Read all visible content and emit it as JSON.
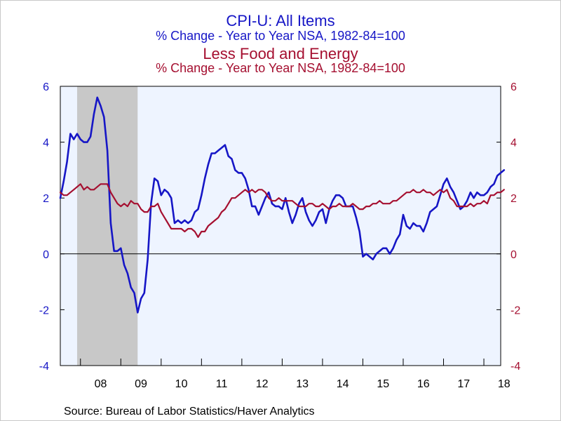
{
  "titles": {
    "main": "CPI-U: All Items",
    "main_sub": "% Change - Year to Year    NSA, 1982-84=100",
    "second": "Less Food and Energy",
    "second_sub": "% Change - Year to Year    NSA, 1982-84=100"
  },
  "source": "Source:  Bureau of Labor Statistics/Haver Analytics",
  "colors": {
    "all_items": "#1616c6",
    "core": "#a50f30",
    "plot_bg": "#eef4ff",
    "recession": "#c8c8c8"
  },
  "chart_data": {
    "type": "line",
    "title": "CPI-U: All Items",
    "x_tick_labels": [
      "08",
      "09",
      "10",
      "11",
      "12",
      "13",
      "14",
      "15",
      "16",
      "17",
      "18"
    ],
    "x_range": [
      "2007-07",
      "2018-06"
    ],
    "ylim": [
      -4,
      6
    ],
    "y_ticks_left": [
      "6",
      "4",
      "2",
      "0",
      "-2",
      "-4"
    ],
    "y_ticks_right": [
      "6",
      "4",
      "2",
      "0",
      "-2",
      "-4"
    ],
    "recession_shading": {
      "start": "2007-12",
      "end": "2009-06"
    },
    "zero_line": true,
    "grid": false,
    "series": [
      {
        "name": "CPI-U: All Items",
        "axis": "left",
        "start": "2007-07",
        "frequency": "monthly",
        "values": [
          2.0,
          2.6,
          3.3,
          4.3,
          4.1,
          4.3,
          4.1,
          4.0,
          4.0,
          4.2,
          5.0,
          5.6,
          5.3,
          4.9,
          3.7,
          1.1,
          0.1,
          0.1,
          0.2,
          -0.4,
          -0.7,
          -1.2,
          -1.4,
          -2.1,
          -1.6,
          -1.4,
          -0.2,
          1.8,
          2.7,
          2.6,
          2.1,
          2.3,
          2.2,
          2.0,
          1.1,
          1.2,
          1.1,
          1.2,
          1.1,
          1.2,
          1.5,
          1.6,
          2.1,
          2.7,
          3.2,
          3.6,
          3.6,
          3.7,
          3.8,
          3.9,
          3.5,
          3.4,
          3.0,
          2.9,
          2.9,
          2.7,
          2.3,
          1.7,
          1.7,
          1.4,
          1.7,
          2.0,
          2.2,
          1.8,
          1.7,
          1.7,
          1.6,
          2.0,
          1.5,
          1.1,
          1.4,
          1.8,
          2.0,
          1.5,
          1.2,
          1.0,
          1.2,
          1.5,
          1.6,
          1.1,
          1.6,
          1.9,
          2.1,
          2.1,
          2.0,
          1.7,
          1.7,
          1.7,
          1.3,
          0.8,
          -0.1,
          0.0,
          -0.1,
          -0.2,
          0.0,
          0.1,
          0.2,
          0.2,
          0.0,
          0.2,
          0.5,
          0.7,
          1.4,
          1.0,
          0.9,
          1.1,
          1.0,
          1.0,
          0.8,
          1.1,
          1.5,
          1.6,
          1.7,
          2.1,
          2.5,
          2.7,
          2.4,
          2.2,
          1.9,
          1.6,
          1.7,
          1.9,
          2.2,
          2.0,
          2.2,
          2.1,
          2.1,
          2.2,
          2.4,
          2.5,
          2.8,
          2.9,
          3.0
        ]
      },
      {
        "name": "Less Food and Energy",
        "axis": "right",
        "start": "2007-07",
        "frequency": "monthly",
        "values": [
          2.2,
          2.1,
          2.1,
          2.2,
          2.3,
          2.4,
          2.5,
          2.3,
          2.4,
          2.3,
          2.3,
          2.4,
          2.5,
          2.5,
          2.5,
          2.2,
          2.0,
          1.8,
          1.7,
          1.8,
          1.7,
          1.9,
          1.8,
          1.8,
          1.6,
          1.5,
          1.5,
          1.7,
          1.7,
          1.8,
          1.5,
          1.3,
          1.1,
          0.9,
          0.9,
          0.9,
          0.9,
          0.8,
          0.9,
          0.9,
          0.8,
          0.6,
          0.8,
          0.8,
          1.0,
          1.1,
          1.2,
          1.3,
          1.5,
          1.6,
          1.8,
          2.0,
          2.0,
          2.1,
          2.2,
          2.3,
          2.2,
          2.3,
          2.2,
          2.3,
          2.3,
          2.2,
          2.0,
          1.9,
          1.9,
          2.0,
          1.9,
          1.9,
          1.9,
          1.9,
          1.8,
          1.7,
          1.7,
          1.7,
          1.8,
          1.8,
          1.7,
          1.7,
          1.8,
          1.7,
          1.6,
          1.7,
          1.7,
          1.8,
          1.7,
          1.7,
          1.7,
          1.8,
          1.7,
          1.6,
          1.6,
          1.7,
          1.7,
          1.8,
          1.8,
          1.9,
          1.8,
          1.8,
          1.8,
          1.9,
          1.9,
          2.0,
          2.1,
          2.2,
          2.2,
          2.3,
          2.2,
          2.2,
          2.3,
          2.2,
          2.2,
          2.1,
          2.2,
          2.3,
          2.2,
          2.3,
          2.0,
          1.9,
          1.7,
          1.7,
          1.7,
          1.7,
          1.8,
          1.7,
          1.8,
          1.8,
          1.9,
          1.8,
          2.1,
          2.1,
          2.2,
          2.2,
          2.3
        ]
      }
    ]
  }
}
